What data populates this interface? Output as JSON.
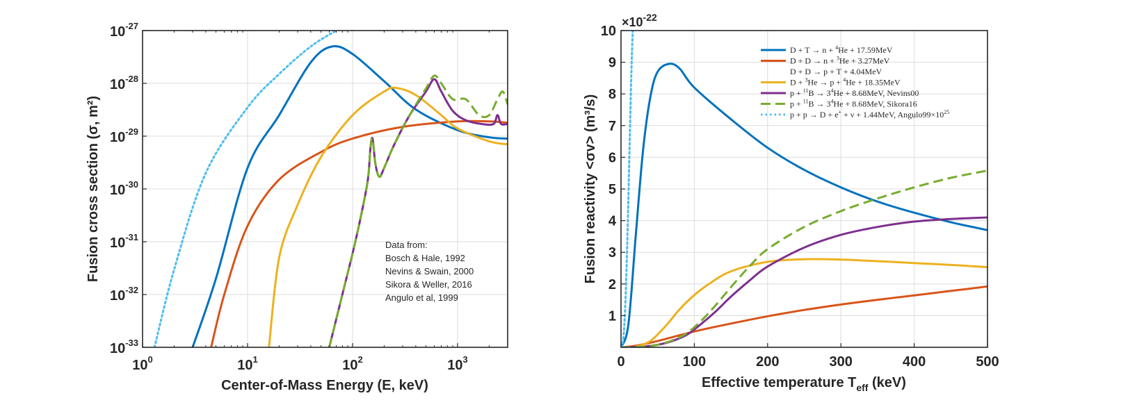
{
  "chart_data": [
    {
      "type": "line",
      "xscale": "log",
      "yscale": "log",
      "xlabel": "Center-of-Mass Energy (E, keV)",
      "ylabel": "Fusion cross section (σ, m²)",
      "xlim": [
        1,
        3000
      ],
      "ylim": [
        1e-33,
        1e-27
      ],
      "grid": true,
      "x_ticks": [
        {
          "base": "10",
          "exp": "0"
        },
        {
          "base": "10",
          "exp": "1"
        },
        {
          "base": "10",
          "exp": "2"
        },
        {
          "base": "10",
          "exp": "3"
        }
      ],
      "y_ticks": [
        {
          "base": "10",
          "exp": "-33"
        },
        {
          "base": "10",
          "exp": "-32"
        },
        {
          "base": "10",
          "exp": "-31"
        },
        {
          "base": "10",
          "exp": "-30"
        },
        {
          "base": "10",
          "exp": "-29"
        },
        {
          "base": "10",
          "exp": "-28"
        },
        {
          "base": "10",
          "exp": "-27"
        }
      ],
      "annotation": [
        "Data from:",
        "Bosch & Hale, 1992",
        "Nevins & Swain, 2000",
        "Sikora & Weller, 2016",
        "Angulo et al, 1999"
      ],
      "series": [
        {
          "name": "D-T",
          "color": "#0072BD",
          "style": "solid",
          "x": [
            3,
            5,
            10,
            20,
            40,
            64,
            100,
            200,
            400,
            1000,
            2000,
            3000
          ],
          "y": [
            1e-33,
            2e-32,
            2.5e-30,
            2.5e-29,
            2.5e-28,
            5e-28,
            3.6e-28,
            1.1e-28,
            3.2e-29,
            1.3e-29,
            9.5e-30,
            9e-30
          ]
        },
        {
          "name": "D-D (n)",
          "color": "#D95319",
          "style": "solid",
          "x": [
            4.5,
            6,
            10,
            20,
            50,
            100,
            300,
            1000,
            2000,
            3000
          ],
          "y": [
            1e-33,
            1e-32,
            2e-31,
            1.5e-30,
            5e-30,
            9e-30,
            1.5e-29,
            1.9e-29,
            1.9e-29,
            1.8e-29
          ]
        },
        {
          "name": "D-3He",
          "color": "#EDB120",
          "style": "solid",
          "x": [
            16,
            20,
            30,
            50,
            100,
            200,
            260,
            400,
            700,
            1000,
            2000,
            3000
          ],
          "y": [
            1e-33,
            5e-32,
            5e-31,
            4e-30,
            2.5e-29,
            7e-29,
            8.2e-29,
            6e-29,
            2.5e-29,
            1.4e-29,
            8e-30,
            7e-30
          ]
        },
        {
          "name": "p-11B Nevins00",
          "color": "#7E2F8E",
          "style": "solid",
          "x": [
            60,
            80,
            100,
            120,
            140,
            148,
            155,
            165,
            180,
            200,
            250,
            350,
            500,
            600,
            700,
            900,
            1200,
            1700,
            2200,
            2400,
            2600,
            3000
          ],
          "y": [
            1e-33,
            1e-32,
            6e-32,
            3e-31,
            1.5e-30,
            6e-30,
            9e-30,
            3e-30,
            1.7e-30,
            2.5e-30,
            7e-30,
            2.5e-29,
            7e-29,
            1.2e-28,
            7e-29,
            3e-29,
            2e-29,
            1.7e-29,
            1.7e-29,
            2.5e-29,
            1.7e-29,
            1.7e-29
          ]
        },
        {
          "name": "p-11B Sikora16",
          "color": "#77AC30",
          "style": "dashed",
          "x": [
            60,
            80,
            100,
            120,
            140,
            148,
            155,
            165,
            180,
            200,
            250,
            350,
            500,
            600,
            700,
            900,
            1200,
            1600,
            2000,
            2400,
            2700,
            3000
          ],
          "y": [
            1e-33,
            1e-32,
            6e-32,
            3e-31,
            1.5e-30,
            6e-30,
            9e-30,
            3e-30,
            1.7e-30,
            2.5e-30,
            7e-30,
            2.5e-29,
            8e-29,
            1.4e-28,
            1e-28,
            5e-29,
            5e-29,
            2.5e-29,
            2.5e-29,
            5e-29,
            7e-29,
            4e-29
          ]
        },
        {
          "name": "p-p Angulo99",
          "color": "#4DBEEE",
          "style": "dotted",
          "x": [
            1.3,
            2,
            4,
            10,
            20,
            40,
            70
          ],
          "y": [
            1e-33,
            3e-32,
            2e-30,
            3.5e-29,
            1.5e-28,
            5e-28,
            1e-27
          ]
        }
      ]
    },
    {
      "type": "line",
      "xlabel_main": "Effective temperature T",
      "xlabel_sub": "eff",
      "xlabel_unit": " (keV)",
      "ylabel": "Fusion reactivity <σv> (m³/s)",
      "xlim": [
        0,
        500
      ],
      "ylim": [
        0,
        10
      ],
      "grid": true,
      "exponent_label": {
        "prefix": "×10",
        "power": "-22"
      },
      "x_ticks": [
        "0",
        "100",
        "200",
        "300",
        "400",
        "500"
      ],
      "y_ticks": [
        "1",
        "2",
        "3",
        "4",
        "5",
        "6",
        "7",
        "8",
        "9",
        "10"
      ],
      "series": [
        {
          "name": "D-T",
          "color": "#0072BD",
          "style": "solid",
          "legend": {
            "parts": [
              "D + T → n + ",
              "4",
              "He + 17.59MeV"
            ],
            "sup": [
              1
            ]
          },
          "x": [
            0,
            10,
            20,
            30,
            40,
            50,
            66,
            80,
            100,
            150,
            200,
            250,
            300,
            350,
            400,
            450,
            500
          ],
          "y": [
            0,
            0.7,
            3.5,
            6.2,
            7.9,
            8.7,
            8.95,
            8.8,
            8.2,
            7.2,
            6.3,
            5.6,
            5.05,
            4.6,
            4.25,
            3.95,
            3.7
          ]
        },
        {
          "name": "D-D (n)",
          "color": "#D95319",
          "style": "solid",
          "legend": {
            "parts": [
              "D + D → n + ",
              "3",
              "He + 3.27MeV"
            ],
            "sup": [
              1
            ]
          },
          "x": [
            0,
            20,
            50,
            100,
            150,
            200,
            250,
            300,
            350,
            400,
            450,
            500
          ],
          "y": [
            0,
            0.05,
            0.2,
            0.5,
            0.75,
            0.98,
            1.18,
            1.35,
            1.5,
            1.64,
            1.78,
            1.92
          ]
        },
        {
          "name": "D-D (p)",
          "color": "#D95319",
          "style": "solid",
          "legend": {
            "parts": [
              "D + D → p + T + 4.04MeV"
            ],
            "sup": []
          },
          "x": [],
          "y": []
        },
        {
          "name": "D-3He",
          "color": "#EDB120",
          "style": "solid",
          "legend": {
            "parts": [
              "D + ",
              "3",
              "He → p + ",
              "4",
              "He + 18.35MeV"
            ],
            "sup": [
              1,
              3
            ]
          },
          "x": [
            0,
            20,
            40,
            60,
            80,
            100,
            120,
            150,
            200,
            250,
            300,
            350,
            400,
            450,
            500
          ],
          "y": [
            0,
            0.02,
            0.2,
            0.65,
            1.2,
            1.65,
            2.0,
            2.4,
            2.7,
            2.78,
            2.77,
            2.72,
            2.66,
            2.6,
            2.53
          ]
        },
        {
          "name": "p-11B Nevins00",
          "color": "#7E2F8E",
          "style": "solid",
          "legend": {
            "parts": [
              "p + ",
              "11",
              "B → 3",
              "4",
              "He + 8.68MeV, Nevins00"
            ],
            "sup": [
              1,
              3
            ]
          },
          "x": [
            0,
            30,
            50,
            70,
            90,
            110,
            130,
            150,
            175,
            200,
            250,
            300,
            350,
            400,
            450,
            500
          ],
          "y": [
            0,
            0.02,
            0.08,
            0.2,
            0.4,
            0.75,
            1.15,
            1.6,
            2.1,
            2.55,
            3.15,
            3.55,
            3.8,
            3.97,
            4.05,
            4.1
          ]
        },
        {
          "name": "p-11B Sikora16",
          "color": "#77AC30",
          "style": "dashed",
          "legend": {
            "parts": [
              "p + ",
              "11",
              "B → 3",
              "4",
              "He + 8.68MeV, Sikora16"
            ],
            "sup": [
              1,
              3
            ]
          },
          "x": [
            0,
            30,
            50,
            70,
            90,
            110,
            130,
            150,
            175,
            200,
            250,
            300,
            350,
            400,
            450,
            500
          ],
          "y": [
            0,
            0.02,
            0.08,
            0.22,
            0.45,
            0.85,
            1.35,
            1.9,
            2.55,
            3.1,
            3.8,
            4.3,
            4.7,
            5.05,
            5.35,
            5.58
          ]
        },
        {
          "name": "p-p Angulo99",
          "color": "#4DBEEE",
          "style": "dotted",
          "legend": {
            "parts": [
              "p + p → D + e",
              "+",
              " + ν + 1.44MeV, Angulo99×10",
              "25"
            ],
            "sup": [
              1,
              3
            ]
          },
          "x": [
            0,
            2,
            4,
            6,
            8,
            10,
            12,
            14,
            16
          ],
          "y": [
            0,
            0.1,
            0.5,
            1.4,
            2.8,
            4.6,
            6.6,
            8.6,
            10
          ]
        }
      ]
    }
  ]
}
